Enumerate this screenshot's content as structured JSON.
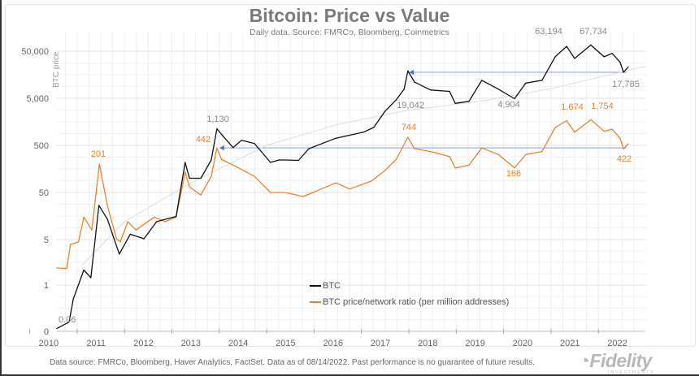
{
  "chart_data": {
    "type": "line",
    "title": "Bitcoin: Price vs Value",
    "subtitle": "Daily data.  Source: FMRCo, Bloomberg, Coinmetrics",
    "ylabel": "BTC price",
    "xlabel": "",
    "y_scale": "log (custom tick spacing)",
    "y_ticks": [
      0,
      1,
      5,
      50,
      500,
      5000,
      50000
    ],
    "y_tick_labels": [
      "0",
      "1",
      "5",
      "50",
      "500",
      "5,000",
      "50,000"
    ],
    "x_ticks": [
      "2010",
      "2011",
      "2012",
      "2013",
      "2014",
      "2015",
      "2016",
      "2017",
      "2018",
      "2019",
      "2020",
      "2021",
      "2022"
    ],
    "grid": true,
    "legend_position": "bottom-center",
    "series": [
      {
        "name": "BTC",
        "color": "#111111",
        "x": [
          2010.57,
          2010.83,
          2010.92,
          2011.14,
          2011.29,
          2011.46,
          2011.64,
          2011.77,
          2011.89,
          2012.12,
          2012.41,
          2012.68,
          2013.09,
          2013.28,
          2013.37,
          2013.61,
          2013.83,
          2013.95,
          2014.05,
          2014.29,
          2014.47,
          2014.74,
          2015.08,
          2015.26,
          2015.38,
          2015.67,
          2015.89,
          2016.46,
          2017.04,
          2017.26,
          2017.49,
          2017.73,
          2017.9,
          2017.98,
          2018.12,
          2018.46,
          2018.86,
          2018.98,
          2019.27,
          2019.54,
          2019.89,
          2020.23,
          2020.47,
          2020.81,
          2021.09,
          2021.33,
          2021.5,
          2021.84,
          2022.12,
          2022.29,
          2022.46,
          2022.53,
          2022.63
        ],
        "y": [
          0.06,
          0.2,
          0.7,
          1.7,
          1.3,
          26.5,
          13.5,
          5.5,
          3.0,
          6.5,
          5.2,
          12,
          15.5,
          217,
          100,
          100,
          245,
          1130,
          850,
          450,
          640,
          550,
          217,
          245,
          245,
          240,
          425,
          710,
          950,
          1200,
          2600,
          4600,
          7800,
          19042,
          11000,
          7500,
          7000,
          3900,
          4300,
          12000,
          7800,
          4904,
          10500,
          12000,
          38000,
          63194,
          35000,
          67734,
          38000,
          45000,
          29000,
          17785,
          23000
        ]
      },
      {
        "name": "BTC price/network ratio (per million addresses)",
        "color": "#e8822f",
        "x": [
          2010.57,
          2010.78,
          2010.86,
          2011.03,
          2011.14,
          2011.31,
          2011.47,
          2011.64,
          2011.83,
          2011.91,
          2012.07,
          2012.24,
          2012.63,
          2012.86,
          2013.09,
          2013.28,
          2013.37,
          2013.61,
          2013.83,
          2013.95,
          2014.05,
          2014.34,
          2014.74,
          2015.08,
          2015.38,
          2015.6,
          2015.77,
          2016.46,
          2016.75,
          2017.21,
          2017.49,
          2017.73,
          2017.98,
          2018.12,
          2018.46,
          2018.86,
          2018.98,
          2019.27,
          2019.54,
          2019.89,
          2020.23,
          2020.47,
          2020.81,
          2021.09,
          2021.33,
          2021.5,
          2021.84,
          2022.12,
          2022.29,
          2022.46,
          2022.53,
          2022.63
        ],
        "y": [
          1.83,
          1.8,
          4.2,
          4.6,
          15,
          8,
          201,
          26,
          5.2,
          4.6,
          12,
          8,
          15,
          12,
          15,
          135,
          66,
          44,
          110,
          442,
          250,
          180,
          110,
          50,
          50,
          45,
          41,
          80,
          59,
          87,
          145,
          250,
          744,
          425,
          370,
          290,
          165,
          190,
          440,
          320,
          166,
          320,
          370,
          1200,
          1674,
          950,
          1754,
          1000,
          1100,
          700,
          422,
          540
        ]
      },
      {
        "color": "#dddddd",
        "x": [
          2011.1,
          2012.0,
          2013.4,
          2015.0,
          2016.5,
          2018.0,
          2019.5,
          2021.0,
          2023.0
        ],
        "y": [
          2,
          12,
          80,
          500,
          1400,
          2800,
          4300,
          8000,
          24000
        ]
      }
    ],
    "reference_lines": [
      {
        "value": 17785,
        "from": 2018.0,
        "to": 2022.6,
        "color": "#9fb3d9"
      },
      {
        "value": 442,
        "from": 2014.0,
        "to": 2022.6,
        "color": "#9fb3d9"
      }
    ],
    "annotations": [
      {
        "text": "0.06",
        "color": "#888888"
      },
      {
        "text": "201",
        "color": "#e8822f"
      },
      {
        "text": "442",
        "color": "#e8822f"
      },
      {
        "text": "1,130",
        "color": "#888888"
      },
      {
        "text": "19,042",
        "color": "#888888"
      },
      {
        "text": "4,904",
        "color": "#888888"
      },
      {
        "text": "63,194",
        "color": "#888888"
      },
      {
        "text": "67,734",
        "color": "#888888"
      },
      {
        "text": "17,785",
        "color": "#888888"
      },
      {
        "text": "744",
        "color": "#e8822f"
      },
      {
        "text": "166",
        "color": "#e8822f"
      },
      {
        "text": "1,674",
        "color": "#e8822f"
      },
      {
        "text": "1,754",
        "color": "#e8822f"
      },
      {
        "text": "422",
        "color": "#e8822f"
      }
    ]
  },
  "footer": "Data source: FMRCo, Bloomberg, Haver Analytics, FactSet. Data as of 08/14/2022. Past performance is no guarantee of future results.",
  "logo": {
    "name": "Fidelity",
    "sub": "INVESTMENTS"
  }
}
